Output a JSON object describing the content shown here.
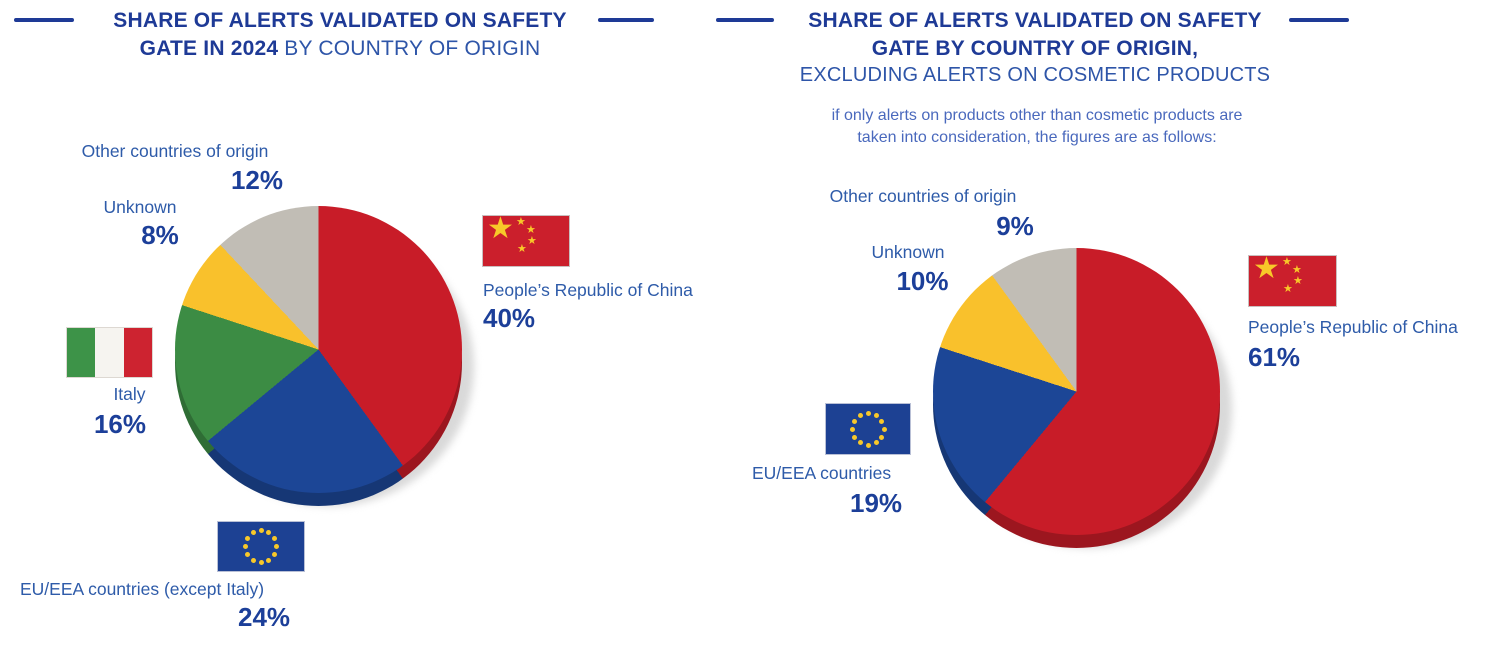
{
  "colors": {
    "title_blue": "#1e3a96",
    "title_light_blue": "#2e55a8",
    "label_blue": "#2e5ba9",
    "value_blue": "#1c3f99",
    "subtitle_blue": "#4a69bd",
    "china_red": "#c81c28",
    "eu_blue": "#1c4696",
    "italy_green": "#3c8c44",
    "unknown_yellow": "#f9c12c",
    "other_gray": "#c1bdb5",
    "flag_red": "#cb1f2c",
    "flag_gold": "#f8c829",
    "flag_eu_blue": "#1d4193",
    "italy_flag_green": "#3d9348",
    "italy_flag_white": "#f6f4f0",
    "italy_flag_red": "#cd2330",
    "shadow_gray": "#d9d9d9"
  },
  "chart_data": [
    {
      "type": "pie",
      "title_line1": "SHARE OF ALERTS VALIDATED ON SAFETY",
      "title_line2_bold": "GATE IN 2024",
      "title_line2_light": " BY COUNTRY OF ORIGIN",
      "units": "%",
      "start_angle": "top",
      "direction": "clockwise",
      "legend_position": "around pie with flag icons",
      "segments": [
        {
          "label": "People’s Republic of China",
          "pct": "40%",
          "value": 40,
          "color": "#c81c28",
          "flag": "china-flag"
        },
        {
          "label": "EU/EEA countries (except Italy)",
          "pct": "24%",
          "value": 24,
          "color": "#1c4696",
          "flag": "eu-flag"
        },
        {
          "label": "Italy",
          "pct": "16%",
          "value": 16,
          "color": "#3c8c44",
          "flag": "italy-flag"
        },
        {
          "label": "Unknown",
          "pct": "8%",
          "value": 8,
          "color": "#f9c12c",
          "flag": null
        },
        {
          "label": "Other countries of origin",
          "pct": "12%",
          "value": 12,
          "color": "#c1bdb5",
          "flag": null
        }
      ]
    },
    {
      "type": "pie",
      "title_line1": "SHARE OF ALERTS VALIDATED ON SAFETY",
      "title_line2_bold": "GATE BY COUNTRY OF ORIGIN,",
      "title_line3_light": "EXCLUDING ALERTS ON COSMETIC PRODUCTS",
      "subtitle_line1": "if only alerts on products other than cosmetic products are",
      "subtitle_line2": "taken into consideration, the figures are as follows:",
      "units": "%",
      "start_angle": "top",
      "direction": "clockwise",
      "legend_position": "around pie with flag icons",
      "segments": [
        {
          "label": "People’s Republic of China",
          "pct": "61%",
          "value": 61,
          "color": "#c81c28",
          "flag": "china-flag"
        },
        {
          "label": "EU/EEA countries",
          "pct": "19%",
          "value": 19,
          "color": "#1c4696",
          "flag": "eu-flag"
        },
        {
          "label": "Unknown",
          "pct": "10%",
          "value": 10,
          "color": "#f9c12c",
          "flag": null
        },
        {
          "label": "Other countries of origin",
          "pct": "9%",
          "value": 9,
          "color": "#c1bdb5",
          "flag": null
        }
      ]
    }
  ]
}
